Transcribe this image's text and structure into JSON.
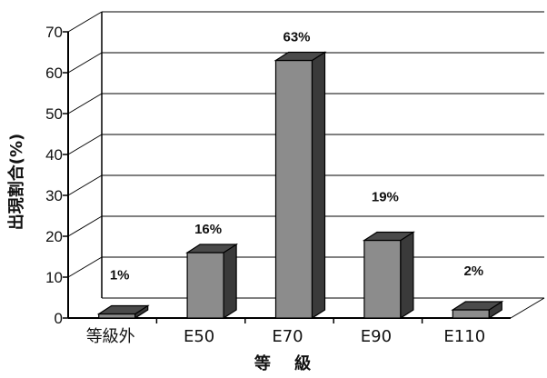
{
  "chart_data": {
    "type": "bar",
    "title": "",
    "xlabel": "等 級",
    "ylabel": "出現割合(%)",
    "categories": [
      "等級外",
      "E50",
      "E70",
      "E90",
      "E110"
    ],
    "values": [
      1,
      16,
      63,
      19,
      2
    ],
    "data_labels": [
      "1%",
      "16%",
      "63%",
      "19%",
      "2%"
    ],
    "ylim": [
      0,
      70
    ],
    "yticks": [
      "0",
      "10",
      "20",
      "30",
      "40",
      "50",
      "60",
      "70"
    ],
    "grid": true,
    "style": "3d"
  },
  "colors": {
    "bar_front": "#8c8c8c",
    "bar_top": "#4a4a4a",
    "bar_side": "#3a3a3a",
    "axis": "#000000",
    "grid": "#000000"
  }
}
